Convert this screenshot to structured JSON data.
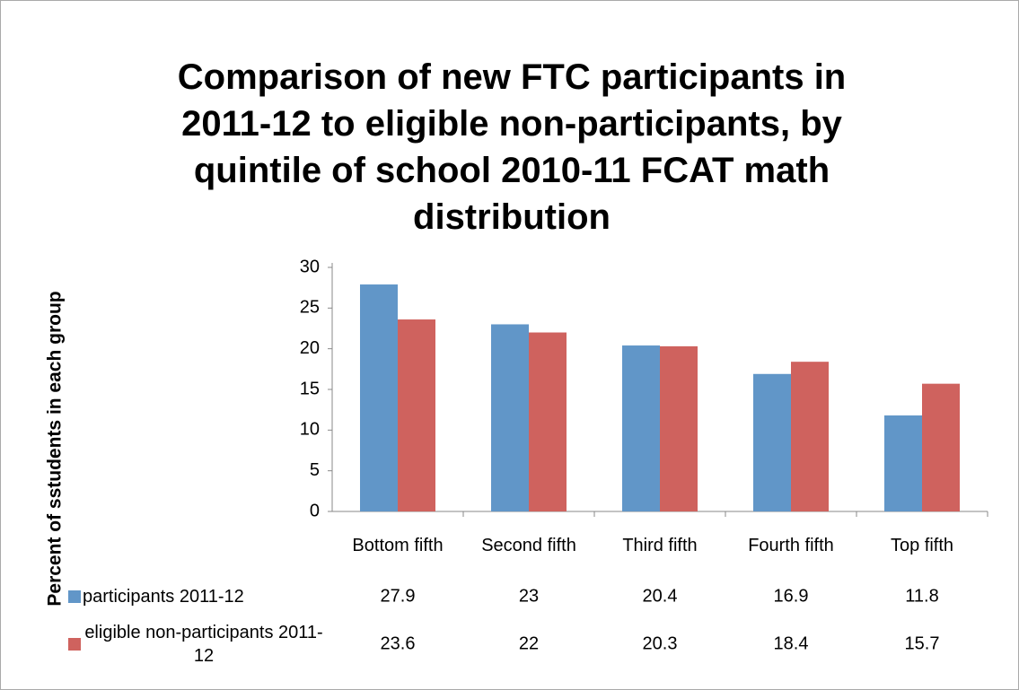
{
  "chart_data": {
    "type": "bar",
    "title": "Comparison of new FTC participants in 2011-12 to eligible non-participants, by quintile of school 2010-11 FCAT math distribution",
    "y_label": "Percent of sstudents in each group",
    "categories": [
      "Bottom fifth",
      "Second fifth",
      "Third fifth",
      "Fourth fifth",
      "Top fifth"
    ],
    "series": [
      {
        "name": "participants 2011-12",
        "color": "#6196c8",
        "values": [
          27.9,
          23,
          20.4,
          16.9,
          11.8
        ]
      },
      {
        "name": "eligible non-participants 2011-12",
        "color": "#cf625e",
        "values": [
          23.6,
          22,
          20.3,
          18.4,
          15.7
        ]
      }
    ],
    "ylim": [
      0,
      30
    ],
    "yticks": [
      0,
      5,
      10,
      15,
      20,
      25,
      30
    ],
    "grid": false,
    "data_table": true
  }
}
